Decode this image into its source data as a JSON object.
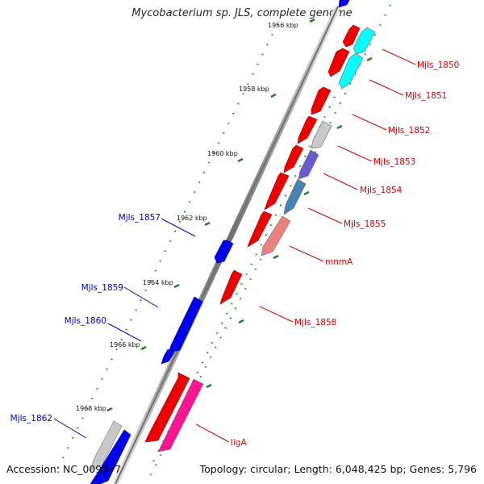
{
  "title": "Mycobacterium sp. JLS, complete genome",
  "footer": {
    "accession": "Accession: NC_009077",
    "topology": "Topology: circular; Length: 6,048,425 bp; Genes: 5,796"
  },
  "colors": {
    "backbone": "#808080",
    "tick_dot": "#2a8a2a",
    "forward_label": "#d40000",
    "reverse_label": "#0000b4",
    "red": "#ee0000",
    "blue": "#0000ee",
    "cyan": "#00ffff",
    "gray": "#c8c8c8",
    "slate": "#6a5acd",
    "steel": "#4682b4",
    "salmon": "#f08080",
    "pink": "#ff1493"
  },
  "ticks": [
    {
      "label": "1956 kbp"
    },
    {
      "label": "1958 kbp"
    },
    {
      "label": "1960 kbp"
    },
    {
      "label": "1962 kbp"
    },
    {
      "label": "1964 kbp"
    },
    {
      "label": "1966 kbp"
    },
    {
      "label": "1968 kbp"
    }
  ],
  "labels": {
    "forward": [
      {
        "text": "Mjls_1850"
      },
      {
        "text": "Mjls_1851"
      },
      {
        "text": "Mjls_1852"
      },
      {
        "text": "Mjls_1853"
      },
      {
        "text": "Mjls_1854"
      },
      {
        "text": "Mjls_1855"
      },
      {
        "text": "mnmA"
      },
      {
        "text": "Mjls_1858"
      },
      {
        "text": "ligA"
      }
    ],
    "reverse": [
      {
        "text": "Mjls_1857"
      },
      {
        "text": "Mjls_1859"
      },
      {
        "text": "Mjls_1860"
      },
      {
        "text": "Mjls_1862"
      }
    ]
  }
}
